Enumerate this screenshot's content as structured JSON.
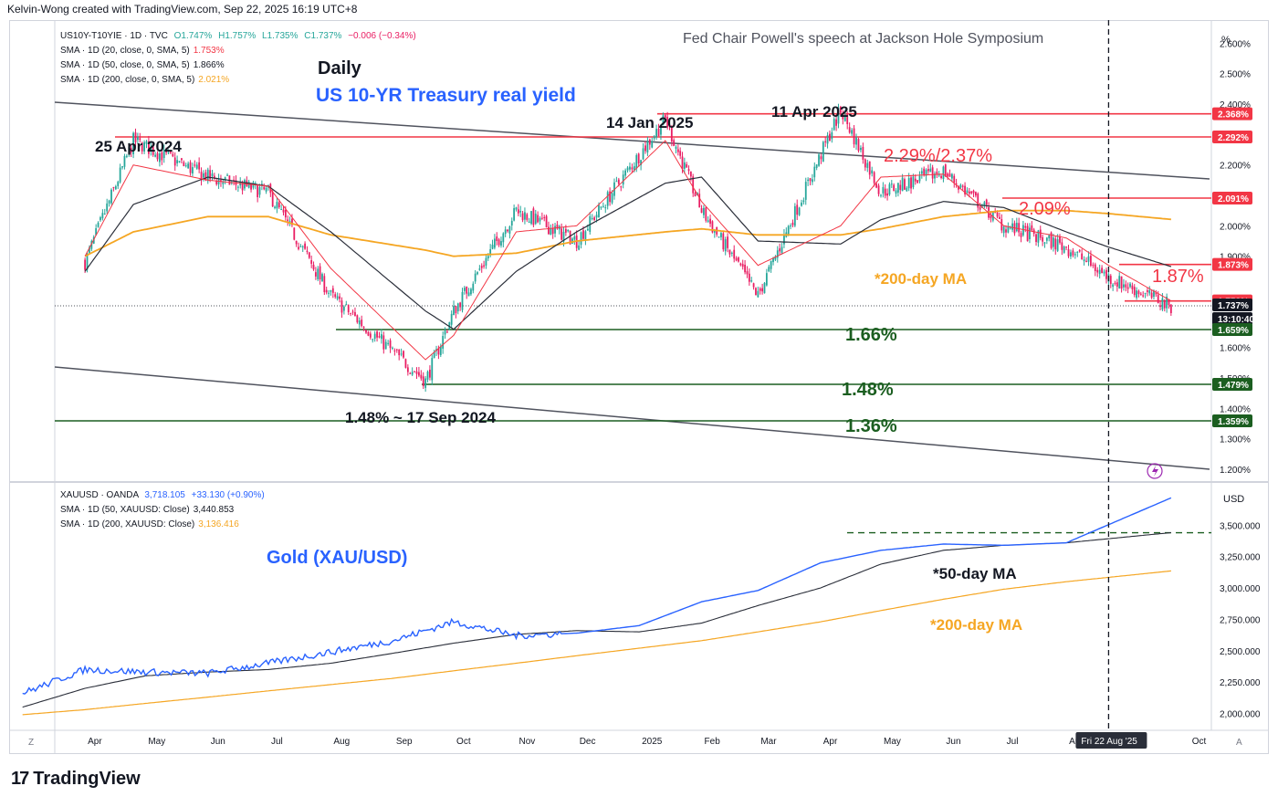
{
  "header": {
    "credit": "Kelvin-Wong created with TradingView.com, Sep 22, 2025 16:19 UTC+8"
  },
  "brand": {
    "logo_text": "TradingView",
    "logo_mark": "17"
  },
  "top_pane": {
    "symbol_line": {
      "symbol": "US10Y-T10YIE · 1D · TVC",
      "o": "O1.747%",
      "h": "H1.757%",
      "l": "L1.735%",
      "c": "C1.737%",
      "chg": "−0.006 (−0.34%)"
    },
    "ma_lines": [
      {
        "label": "SMA · 1D (20, close, 0, SMA, 5)",
        "value": "1.753%",
        "color": "#f23645"
      },
      {
        "label": "SMA · 1D (50, close, 0, SMA, 5)",
        "value": "1.866%",
        "color": "#131722"
      },
      {
        "label": "SMA · 1D (200, close, 0, SMA, 5)",
        "value": "2.021%",
        "color": "#f5a623"
      }
    ],
    "unit": "%",
    "title_daily": "Daily",
    "title": "US 10-YR Treasury real yield",
    "event_note": "Fed Chair Powell's speech at Jackson Hole Symposium",
    "annotations": {
      "apr2024": "25 Apr 2024",
      "jan2025": "14 Jan 2025",
      "apr2025": "11 Apr 2025",
      "r1": "2.29%/2.37%",
      "r2": "2.09%",
      "r3": "1.87%",
      "s1": "1.66%",
      "s2": "1.48%",
      "s3": "1.36%",
      "sep2024": "1.48%  ~ 17 Sep 2024",
      "ma200": "*200-day MA"
    },
    "price_axis_ticks": [
      "2.600%",
      "2.500%",
      "2.400%",
      "2.200%",
      "2.100%",
      "2.000%",
      "1.900%",
      "1.600%",
      "1.500%",
      "1.400%",
      "1.300%",
      "1.200%"
    ],
    "price_badges": [
      {
        "text": "2.368%",
        "color": "#f23645"
      },
      {
        "text": "2.292%",
        "color": "#f23645"
      },
      {
        "text": "2.091%",
        "color": "#f23645"
      },
      {
        "text": "1.873%",
        "color": "#f23645"
      },
      {
        "text": "1.753%",
        "color": "#f23645"
      },
      {
        "text": "1.737%",
        "color": "#131722"
      },
      {
        "text": "13:10:40",
        "color": "#131722"
      },
      {
        "text": "1.659%",
        "color": "#1b5e20"
      },
      {
        "text": "1.479%",
        "color": "#1b5e20"
      },
      {
        "text": "1.359%",
        "color": "#1b5e20"
      }
    ]
  },
  "bottom_pane": {
    "symbol_line": {
      "symbol": "XAUUSD · OANDA",
      "last": "3,718.105",
      "chg": "+33.130 (+0.90%)"
    },
    "ma_lines": [
      {
        "label": "SMA · 1D (50, XAUUSD: Close)",
        "value": "3,440.853",
        "color": "#131722"
      },
      {
        "label": "SMA · 1D (200, XAUUSD: Close)",
        "value": "3,136.416",
        "color": "#f5a623"
      }
    ],
    "unit": "USD",
    "title": "Gold (XAU/USD)",
    "annotations": {
      "ma50": "*50-day MA",
      "ma200": "*200-day MA"
    },
    "price_axis_ticks": [
      "3,500.000",
      "3,250.000",
      "3,000.000",
      "2,750.000",
      "2,500.000",
      "2,250.000",
      "2,000.000"
    ]
  },
  "time_axis": {
    "labels": [
      "Apr",
      "May",
      "Jun",
      "Jul",
      "Aug",
      "Sep",
      "Oct",
      "Nov",
      "Dec",
      "2025",
      "Feb",
      "Mar",
      "Apr",
      "May",
      "Jun",
      "Jul",
      "Aug",
      "Oct"
    ],
    "marker": "Fri 22 Aug '25",
    "left_btn": "Z",
    "right_btn": "A"
  },
  "colors": {
    "up": "#26a69a",
    "down": "#e91e63",
    "resistance": "#f23645",
    "support": "#1b5e20",
    "blue_title": "#2962ff",
    "ma200": "#f5a623",
    "ma20": "#f23645",
    "ma50": "#2a2e39",
    "gold_line": "#2962ff"
  },
  "chart_data": [
    {
      "type": "line",
      "title": "US 10-YR Treasury real yield",
      "description_series": "Daily OHLC candles with SMA 20/50/200",
      "x": [
        "2024-04",
        "2024-04-25",
        "2024-06",
        "2024-07",
        "2024-08",
        "2024-09-17",
        "2024-10",
        "2024-11",
        "2024-12",
        "2025-01-14",
        "2025-02",
        "2025-03",
        "2025-04-11",
        "2025-05",
        "2025-06",
        "2025-07",
        "2025-08",
        "2025-08-22",
        "2025-09-22"
      ],
      "series": [
        {
          "name": "US10Y-T10YIE",
          "values": [
            1.88,
            2.28,
            2.16,
            2.11,
            1.77,
            1.49,
            1.72,
            2.05,
            1.95,
            2.35,
            2.05,
            1.77,
            2.38,
            2.11,
            2.18,
            2.0,
            1.93,
            1.83,
            1.737
          ]
        },
        {
          "name": "SMA 20",
          "values": [
            1.9,
            2.2,
            2.15,
            2.13,
            1.86,
            1.56,
            1.64,
            1.98,
            2.0,
            2.28,
            2.08,
            1.87,
            2.0,
            2.16,
            2.17,
            2.0,
            1.96,
            1.87,
            1.753
          ]
        },
        {
          "name": "SMA 50",
          "values": [
            1.85,
            2.07,
            2.16,
            2.13,
            1.98,
            1.72,
            1.66,
            1.85,
            1.98,
            2.14,
            2.16,
            1.95,
            1.94,
            2.02,
            2.08,
            2.06,
            1.98,
            1.93,
            1.866
          ]
        },
        {
          "name": "SMA 200",
          "values": [
            1.9,
            1.98,
            2.03,
            2.03,
            1.97,
            1.92,
            1.9,
            1.91,
            1.95,
            1.98,
            1.99,
            1.97,
            1.97,
            1.99,
            2.03,
            2.05,
            2.05,
            2.04,
            2.021
          ]
        }
      ],
      "levels": [
        2.368,
        2.292,
        2.091,
        1.873,
        1.659,
        1.479,
        1.359
      ],
      "ylim": [
        1.2,
        2.65
      ]
    },
    {
      "type": "line",
      "title": "Gold (XAU/USD)",
      "x": [
        "2024-03",
        "2024-04",
        "2024-05",
        "2024-06",
        "2024-07",
        "2024-08",
        "2024-09",
        "2024-10",
        "2024-11",
        "2024-12",
        "2025-01",
        "2025-02",
        "2025-03",
        "2025-04",
        "2025-05",
        "2025-06",
        "2025-07",
        "2025-08",
        "2025-09-22"
      ],
      "series": [
        {
          "name": "XAUUSD",
          "values": [
            2160,
            2350,
            2330,
            2320,
            2400,
            2490,
            2580,
            2730,
            2620,
            2640,
            2700,
            2890,
            2980,
            3200,
            3300,
            3350,
            3340,
            3360,
            3718
          ]
        },
        {
          "name": "SMA 50",
          "values": [
            2050,
            2200,
            2300,
            2330,
            2350,
            2400,
            2480,
            2560,
            2630,
            2660,
            2650,
            2720,
            2860,
            3000,
            3190,
            3300,
            3340,
            3360,
            3441
          ]
        },
        {
          "name": "SMA 200",
          "values": [
            1990,
            2030,
            2080,
            2130,
            2180,
            2230,
            2280,
            2340,
            2400,
            2460,
            2520,
            2580,
            2650,
            2730,
            2820,
            2910,
            2990,
            3050,
            3136
          ]
        }
      ],
      "levels": [
        3440
      ],
      "ylim": [
        1900,
        3800
      ]
    }
  ]
}
